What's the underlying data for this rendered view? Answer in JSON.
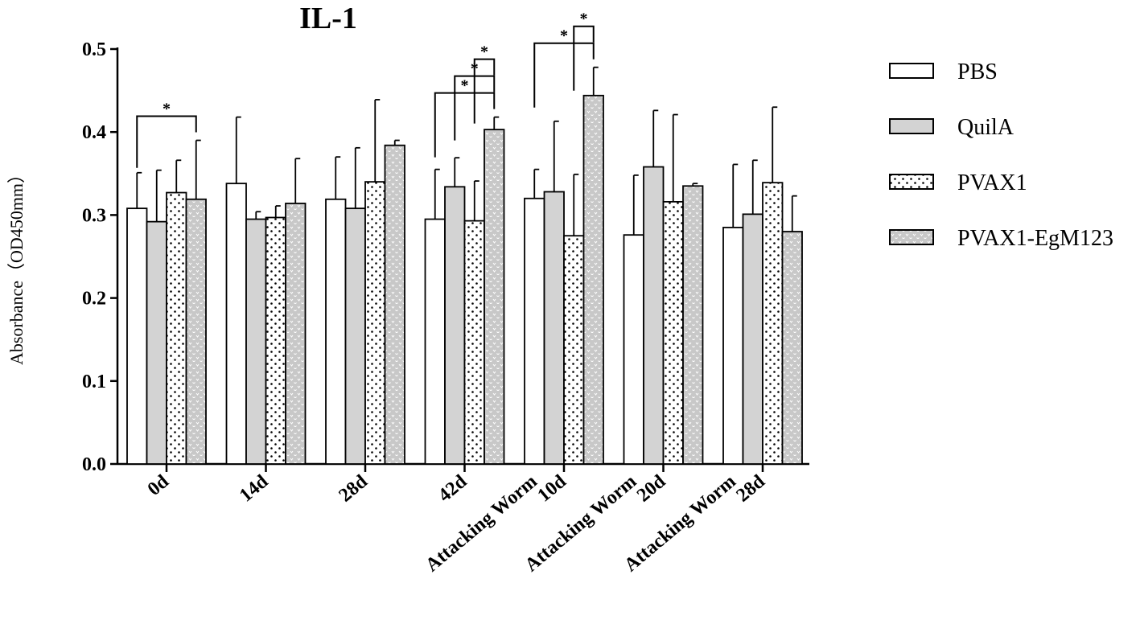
{
  "chart_data": {
    "type": "bar",
    "title": "IL-1",
    "ylabel": "Absorbance（OD450mm）",
    "xlabel": "",
    "ylim": [
      0,
      0.5
    ],
    "yticks": [
      "0.0",
      "0.1",
      "0.2",
      "0.3",
      "0.4",
      "0.5"
    ],
    "categories": [
      {
        "lines": [
          "0d"
        ]
      },
      {
        "lines": [
          "14d"
        ]
      },
      {
        "lines": [
          "28d"
        ]
      },
      {
        "lines": [
          "42d"
        ]
      },
      {
        "lines": [
          "Attacking Worm",
          "10d"
        ]
      },
      {
        "lines": [
          "Attacking Worm",
          "20d"
        ]
      },
      {
        "lines": [
          "Attacking Worm",
          "28d"
        ]
      }
    ],
    "series": [
      {
        "name": "PBS",
        "pattern": "white",
        "values": [
          0.308,
          0.338,
          0.319,
          0.295,
          0.32,
          0.276,
          0.285
        ],
        "errors": [
          0.043,
          0.08,
          0.051,
          0.06,
          0.035,
          0.072,
          0.076
        ]
      },
      {
        "name": "QuilA",
        "pattern": "gray",
        "values": [
          0.292,
          0.295,
          0.308,
          0.334,
          0.328,
          0.358,
          0.301
        ],
        "errors": [
          0.062,
          0.009,
          0.073,
          0.035,
          0.085,
          0.068,
          0.065
        ]
      },
      {
        "name": "PVAX1",
        "pattern": "dots",
        "values": [
          0.327,
          0.297,
          0.34,
          0.293,
          0.275,
          0.316,
          0.339
        ],
        "errors": [
          0.039,
          0.014,
          0.099,
          0.048,
          0.074,
          0.105,
          0.091
        ]
      },
      {
        "name": "PVAX1-EgM123",
        "pattern": "checks",
        "values": [
          0.319,
          0.314,
          0.384,
          0.403,
          0.444,
          0.335,
          0.28
        ],
        "errors": [
          0.071,
          0.054,
          0.006,
          0.015,
          0.034,
          0.003,
          0.043
        ]
      }
    ],
    "significance": [
      {
        "category": 0,
        "from": 0,
        "to": 3,
        "label": "*"
      },
      {
        "category": 3,
        "from": 0,
        "to": 3,
        "label": "*"
      },
      {
        "category": 3,
        "from": 1,
        "to": 3,
        "label": "*"
      },
      {
        "category": 3,
        "from": 2,
        "to": 3,
        "label": "*"
      },
      {
        "category": 4,
        "from": 0,
        "to": 3,
        "label": "*"
      },
      {
        "category": 4,
        "from": 2,
        "to": 3,
        "label": "*"
      }
    ],
    "legend": "right"
  }
}
